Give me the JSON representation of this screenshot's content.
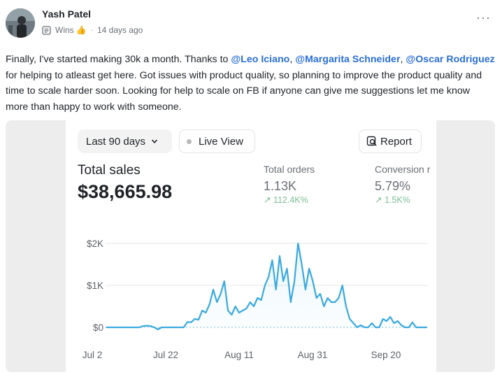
{
  "post": {
    "author": "Yash Patel",
    "category": "Wins",
    "category_emoji": "👍",
    "separator": "·",
    "time_ago": "14 days ago",
    "more_label": "···",
    "text_1": "Finally, I've started making 30k a month. Thanks to ",
    "mention_1": "@Leo Iciano",
    "text_2": ", ",
    "mention_2": "@Margarita Schneider",
    "text_3": ", ",
    "mention_3": "@Oscar Rodriguez",
    "text_4": " for helping to atleast get here. Got issues with product quality, so planning to improve the product quality and time to scale harder soon. Looking for help to scale on FB if anyone can give me suggestions let me know more than happy to work with someone."
  },
  "dashboard": {
    "range_label": "Last 90 days",
    "live_label": "Live View",
    "report_label": "Report",
    "total_sales_label": "Total sales",
    "total_sales_value": "$38,665.98",
    "orders_label": "Total orders",
    "orders_value": "1.13K",
    "orders_delta": "↗ 112.4K%",
    "conversion_label": "Conversion r",
    "conversion_value": "5.79%",
    "conversion_delta": "↗ 1.5K%"
  },
  "colors": {
    "mention": "#2a6fd6",
    "line": "#39a9e0",
    "delta": "#7cbf94"
  },
  "chart_data": {
    "type": "area",
    "y_ticks": [
      "$2K",
      "$1K",
      "$0"
    ],
    "x_ticks": [
      "Jul 2",
      "Jul 22",
      "Aug 11",
      "Aug 31",
      "Sep 20"
    ],
    "ylim": [
      0,
      2000
    ],
    "legend": "none",
    "grid": true,
    "values": [
      0,
      0,
      0,
      0,
      0,
      0,
      0,
      0,
      0,
      0,
      30,
      40,
      30,
      0,
      -50,
      0,
      0,
      0,
      0,
      0,
      0,
      0,
      130,
      120,
      200,
      180,
      400,
      350,
      550,
      900,
      600,
      800,
      1100,
      400,
      300,
      500,
      350,
      400,
      450,
      600,
      500,
      700,
      650,
      1000,
      1200,
      1600,
      900,
      1700,
      1100,
      1400,
      600,
      1100,
      2000,
      1500,
      900,
      1400,
      1100,
      700,
      800,
      500,
      700,
      600,
      600,
      700,
      1000,
      500,
      200,
      100,
      0,
      50,
      0,
      0,
      100,
      0,
      0,
      200,
      150,
      250,
      100,
      150,
      50,
      0,
      0,
      120,
      0,
      0,
      0,
      0
    ]
  }
}
